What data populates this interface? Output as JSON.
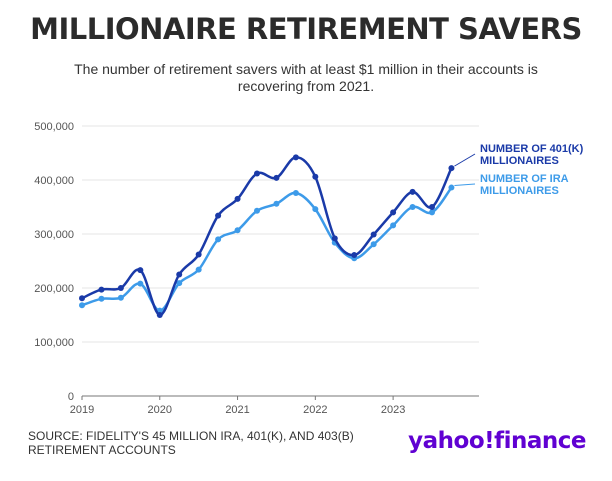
{
  "header": {
    "title": "MILLIONAIRE RETIREMENT SAVERS",
    "subtitle": "The number of retirement savers with at least $1 million in their accounts is recovering from 2021."
  },
  "footer": {
    "source": "SOURCE: FIDELITY'S 45 MILLION IRA, 401(K), AND 403(B) RETIREMENT ACCOUNTS",
    "brand": "yahoo!finance"
  },
  "chart_data": {
    "type": "line",
    "title": "MILLIONAIRE RETIREMENT SAVERS",
    "xlabel": "",
    "ylabel": "",
    "xlim": [
      2019,
      2023.95
    ],
    "ylim": [
      0,
      500000
    ],
    "y_ticks": [
      "0",
      "100,000",
      "200,000",
      "300,000",
      "400,000",
      "500,000"
    ],
    "x_ticks": [
      "2019",
      "2020",
      "2021",
      "2022",
      "2023"
    ],
    "grid": "horizontal",
    "legend": "right, end of lines",
    "x": [
      2019,
      2019.25,
      2019.5,
      2019.75,
      2020,
      2020.25,
      2020.5,
      2020.75,
      2021,
      2021.25,
      2021.5,
      2021.75,
      2022,
      2022.25,
      2022.5,
      2022.75,
      2023,
      2023.25,
      2023.5,
      2023.75
    ],
    "series": [
      {
        "name": "NUMBER OF 401(K) MILLIONAIRES",
        "color": "#1a3aa8",
        "values": [
          181000,
          197000,
          200000,
          233000,
          150000,
          225000,
          262000,
          334000,
          365000,
          412000,
          404000,
          442000,
          406000,
          292000,
          261000,
          299000,
          340000,
          378000,
          350000,
          422000
        ]
      },
      {
        "name": "NUMBER OF IRA MILLIONAIRES",
        "color": "#3d9be9",
        "values": [
          168000,
          180000,
          182000,
          208000,
          158000,
          209000,
          234000,
          290000,
          307000,
          343000,
          356000,
          376000,
          346000,
          284000,
          255000,
          281000,
          316000,
          350000,
          340000,
          386000
        ]
      }
    ]
  }
}
